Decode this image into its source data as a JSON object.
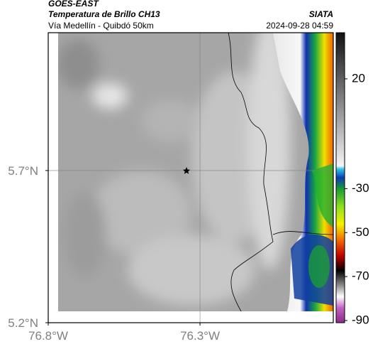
{
  "header": {
    "title": "GOES-EAST",
    "subtitle": "Temperatura de Brillo CH13",
    "source": "SIATA",
    "region": "Vía Medellín - Quibdó 50km",
    "datetime": "2024-09-28 04:59"
  },
  "map": {
    "lat_range": [
      5.2,
      6.153
    ],
    "lon_range": [
      -76.8,
      -75.861
    ],
    "lat_ticks": [
      {
        "value": 5.7,
        "label": "5.7°N"
      },
      {
        "value": 5.2,
        "label": "5.2°N"
      }
    ],
    "lon_ticks": [
      {
        "value": -76.8,
        "label": "76.8°W"
      },
      {
        "value": -76.3,
        "label": "76.3°W"
      }
    ]
  },
  "colorbar": {
    "range": [
      -91,
      41
    ],
    "ticks": [
      20,
      -30,
      -50,
      -70,
      -90
    ]
  }
}
